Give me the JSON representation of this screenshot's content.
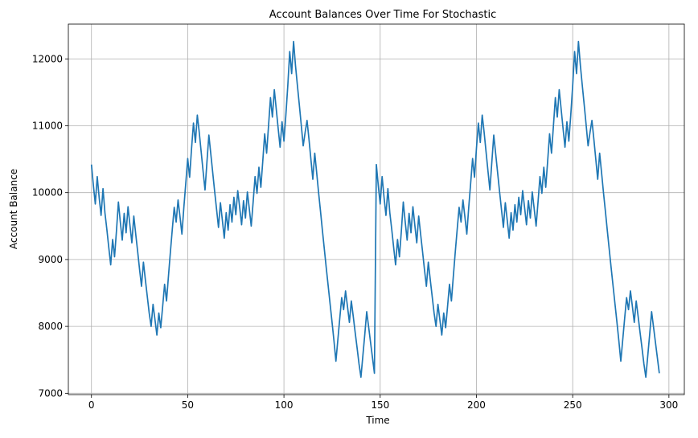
{
  "chart_data": {
    "type": "line",
    "title": "Account Balances Over Time For Stochastic",
    "xlabel": "Time",
    "ylabel": "Account Balance",
    "xlim": [
      -12,
      308
    ],
    "ylim": [
      6980,
      12520
    ],
    "xticks": [
      0,
      50,
      100,
      150,
      200,
      250,
      300
    ],
    "yticks": [
      7000,
      8000,
      9000,
      10000,
      11000,
      12000
    ],
    "grid": true,
    "line_color": "#1f77b4",
    "x_start": 0,
    "x_step": 1,
    "values": [
      10420,
      10110,
      9830,
      10240,
      9930,
      9660,
      10060,
      9700,
      9450,
      9180,
      8920,
      9300,
      9040,
      9430,
      9860,
      9560,
      9290,
      9690,
      9400,
      9790,
      9510,
      9250,
      9650,
      9380,
      9120,
      8850,
      8600,
      8960,
      8700,
      8450,
      8200,
      8000,
      8330,
      8100,
      7870,
      8200,
      7980,
      8300,
      8630,
      8380,
      8750,
      9110,
      9450,
      9780,
      9560,
      9890,
      9640,
      9380,
      9780,
      10140,
      10510,
      10230,
      10660,
      11040,
      10750,
      11160,
      10900,
      10610,
      10320,
      10040,
      10460,
      10860,
      10580,
      10300,
      10020,
      9750,
      9480,
      9850,
      9590,
      9320,
      9700,
      9440,
      9820,
      9560,
      9930,
      9670,
      10030,
      9780,
      9520,
      9880,
      9620,
      10010,
      9760,
      9500,
      9860,
      10240,
      9990,
      10380,
      10080,
      10470,
      10880,
      10590,
      11000,
      11420,
      11130,
      11540,
      11250,
      10960,
      10680,
      11060,
      10770,
      11160,
      11600,
      12110,
      11780,
      12260,
      11900,
      11600,
      11310,
      11010,
      10700,
      10900,
      11080,
      10800,
      10500,
      10200,
      10590,
      10300,
      10000,
      9720,
      9430,
      9150,
      8870,
      8600,
      8330,
      8060,
      7780,
      7480,
      7800,
      8120,
      8430,
      8250,
      8530,
      8300,
      8060,
      8380,
      8150,
      7910,
      7680,
      7440,
      7240,
      7560,
      7880,
      8220,
      7990,
      7760,
      7530,
      7300,
      10420,
      10110,
      9830,
      10240,
      9930,
      9660,
      10060,
      9700,
      9450,
      9180,
      8920,
      9300,
      9040,
      9430,
      9860,
      9560,
      9290,
      9690,
      9400,
      9790,
      9510,
      9250,
      9650,
      9380,
      9120,
      8850,
      8600,
      8960,
      8700,
      8450,
      8200,
      8000,
      8330,
      8100,
      7870,
      8200,
      7980,
      8300,
      8630,
      8380,
      8750,
      9110,
      9450,
      9780,
      9560,
      9890,
      9640,
      9380,
      9780,
      10140,
      10510,
      10230,
      10660,
      11040,
      10750,
      11160,
      10900,
      10610,
      10320,
      10040,
      10460,
      10860,
      10580,
      10300,
      10020,
      9750,
      9480,
      9850,
      9590,
      9320,
      9700,
      9440,
      9820,
      9560,
      9930,
      9670,
      10030,
      9780,
      9520,
      9880,
      9620,
      10010,
      9760,
      9500,
      9860,
      10240,
      9990,
      10380,
      10080,
      10470,
      10880,
      10590,
      11000,
      11420,
      11130,
      11540,
      11250,
      10960,
      10680,
      11060,
      10770,
      11160,
      11600,
      12110,
      11780,
      12260,
      11900,
      11600,
      11310,
      11010,
      10700,
      10900,
      11080,
      10800,
      10500,
      10200,
      10590,
      10300,
      10000,
      9720,
      9430,
      9150,
      8870,
      8600,
      8330,
      8060,
      7780,
      7480,
      7800,
      8120,
      8430,
      8250,
      8530,
      8300,
      8060,
      8380,
      8150,
      7910,
      7680,
      7440,
      7240,
      7560,
      7880,
      8220,
      7990,
      7760,
      7530,
      7300
    ]
  }
}
